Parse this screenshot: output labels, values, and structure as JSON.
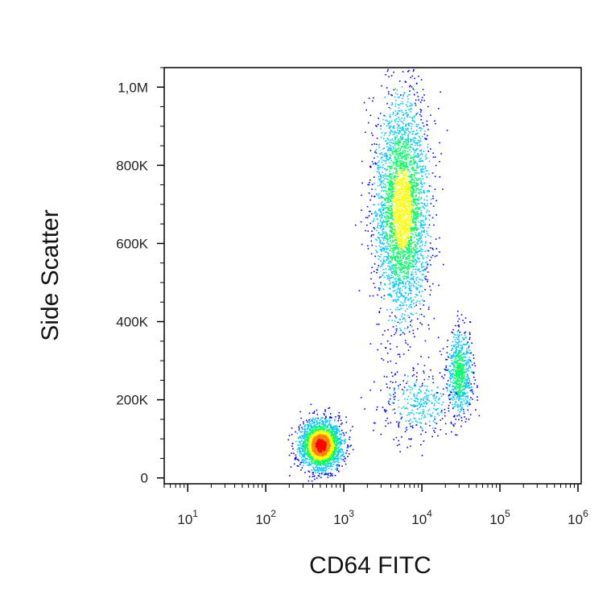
{
  "chart_data": {
    "type": "scatter",
    "subtype": "flow-cytometry-density-plot",
    "title": "",
    "xlabel": "CD64 FITC",
    "ylabel": "Side Scatter",
    "x_scale": "log",
    "xlim": [
      5,
      1100000
    ],
    "ylim": [
      -15000,
      1050000
    ],
    "x_ticks": [
      {
        "base": "10",
        "exp": "1",
        "value": 10
      },
      {
        "base": "10",
        "exp": "2",
        "value": 100
      },
      {
        "base": "10",
        "exp": "3",
        "value": 1000
      },
      {
        "base": "10",
        "exp": "4",
        "value": 10000
      },
      {
        "base": "10",
        "exp": "5",
        "value": 100000
      },
      {
        "base": "10",
        "exp": "6",
        "value": 1000000
      }
    ],
    "y_ticks": [
      {
        "label": "0",
        "value": 0
      },
      {
        "label": "200K",
        "value": 200000
      },
      {
        "label": "400K",
        "value": 400000
      },
      {
        "label": "600K",
        "value": 600000
      },
      {
        "label": "800K",
        "value": 800000
      },
      {
        "label": "1,0M",
        "value": 1000000
      }
    ],
    "populations": [
      {
        "center_x": 500,
        "center_y": 85000,
        "spread_log_x": 0.13,
        "spread_y": 30000,
        "count": 2600,
        "peak_density": "high"
      },
      {
        "center_x": 5500,
        "center_y": 690000,
        "spread_log_x": 0.17,
        "spread_y": 140000,
        "count": 3400,
        "peak_density": "medium"
      },
      {
        "center_x": 30000,
        "center_y": 270000,
        "spread_log_x": 0.08,
        "spread_y": 55000,
        "count": 750,
        "peak_density": "low"
      },
      {
        "center_x": 9000,
        "center_y": 190000,
        "spread_log_x": 0.25,
        "spread_y": 45000,
        "count": 350,
        "peak_density": "sparse"
      }
    ],
    "colormap": [
      "#0000ff",
      "#00c8ff",
      "#00ff64",
      "#ffff00",
      "#ff8000",
      "#ff0000"
    ],
    "grid": false,
    "legend": "none"
  }
}
